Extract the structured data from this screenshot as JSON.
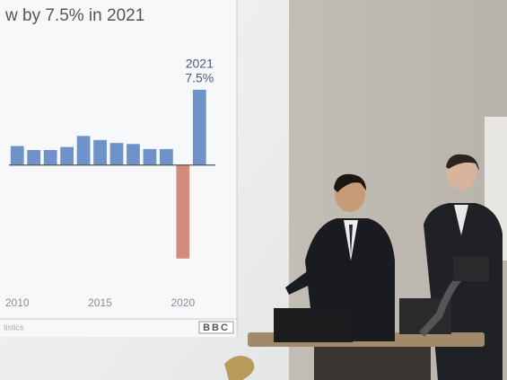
{
  "chart_data": {
    "type": "bar",
    "title": "w by 7.5% in 2021",
    "x": [
      2010,
      2011,
      2012,
      2013,
      2014,
      2015,
      2016,
      2017,
      2018,
      2019,
      2020,
      2021
    ],
    "values": [
      1.9,
      1.5,
      1.5,
      1.8,
      2.9,
      2.5,
      2.2,
      2.1,
      1.6,
      1.6,
      -9.3,
      7.5
    ],
    "value_labels": [
      null,
      null,
      null,
      null,
      null,
      null,
      null,
      null,
      null,
      null,
      null,
      "7.5%"
    ],
    "annotation": "2021",
    "xlim": [
      2009.5,
      2022.5
    ],
    "xticks": [
      2010,
      2015,
      2020
    ],
    "ylim": [
      -12,
      15
    ],
    "colors": {
      "positive": "#6f93c9",
      "negative": "#d38a7f"
    },
    "source": "tistics",
    "logo": "BBC"
  }
}
